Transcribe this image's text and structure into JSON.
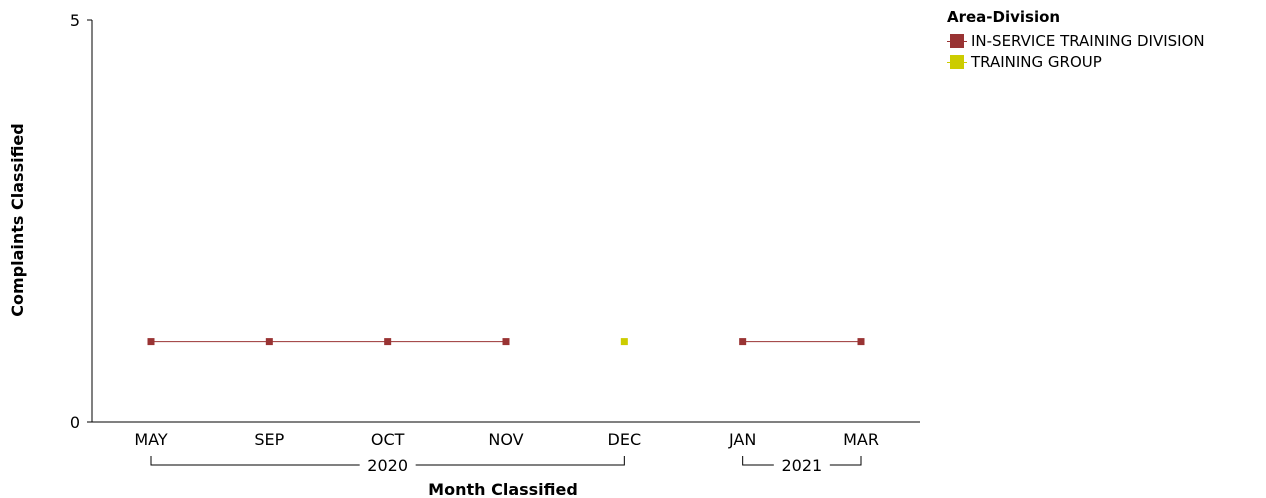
{
  "chart_data": {
    "type": "line",
    "xlabel": "Month Classified",
    "ylabel": "Complaints Classified",
    "ylim": [
      0,
      5
    ],
    "y_ticks": [
      "0",
      "5"
    ],
    "categories": [
      "MAY",
      "SEP",
      "OCT",
      "NOV",
      "DEC",
      "JAN",
      "MAR"
    ],
    "year_groups": [
      {
        "label": "2020",
        "from": 0,
        "to": 4
      },
      {
        "label": "2021",
        "from": 5,
        "to": 6
      }
    ],
    "legend": {
      "title": "Area-Division",
      "placement": "top-right"
    },
    "series": [
      {
        "name": "IN-SERVICE TRAINING DIVISION",
        "color": "#993333",
        "values": [
          1,
          1,
          1,
          1,
          null,
          1,
          1
        ]
      },
      {
        "name": "TRAINING GROUP",
        "color": "#cccc00",
        "values": [
          null,
          null,
          null,
          null,
          1,
          null,
          null
        ]
      }
    ],
    "grid": false
  }
}
